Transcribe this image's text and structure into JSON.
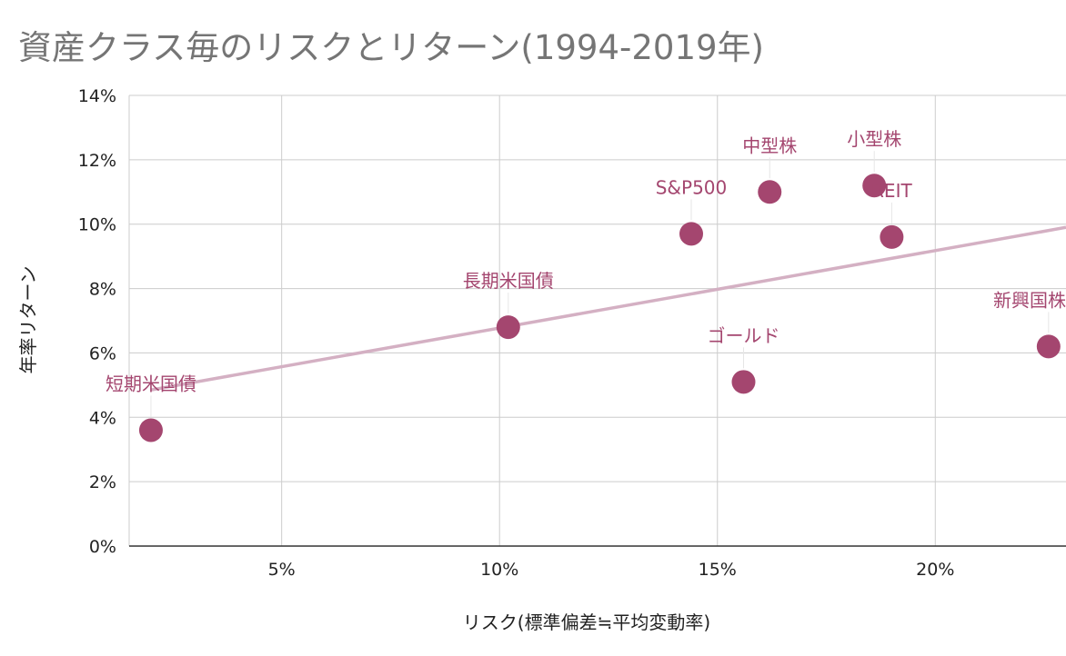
{
  "chart_data": {
    "type": "scatter",
    "title": "資産クラス毎のリスクとリターン(1994-2019年)",
    "xlabel": "リスク(標準偏差≒平均変動率)",
    "ylabel": "年率リターン",
    "xlim": [
      1.5,
      23.0
    ],
    "ylim": [
      0,
      14
    ],
    "x_ticks": [
      5,
      10,
      15,
      20
    ],
    "x_tick_labels": [
      "5%",
      "10%",
      "15%",
      "20%"
    ],
    "y_ticks": [
      0,
      2,
      4,
      6,
      8,
      10,
      12,
      14
    ],
    "y_tick_labels": [
      "0%",
      "2%",
      "4%",
      "6%",
      "8%",
      "10%",
      "12%",
      "14%"
    ],
    "grid": true,
    "legend": "none",
    "point_color": "#a4466f",
    "trendline_color": "#d4b0c3",
    "points": [
      {
        "label": "短期米国債",
        "x": 2.0,
        "y": 3.6
      },
      {
        "label": "長期米国債",
        "x": 10.2,
        "y": 6.8
      },
      {
        "label": "S&P500",
        "x": 14.4,
        "y": 9.7
      },
      {
        "label": "中型株",
        "x": 16.2,
        "y": 11.0
      },
      {
        "label": "小型株",
        "x": 18.6,
        "y": 11.2
      },
      {
        "label": "REIT",
        "x": 19.0,
        "y": 9.6
      },
      {
        "label": "ゴールド",
        "x": 15.6,
        "y": 5.1
      },
      {
        "label": "新興国株",
        "x": 22.6,
        "y": 6.2
      }
    ],
    "trendline": {
      "x": [
        2.0,
        23.0
      ],
      "y": [
        4.85,
        9.9
      ]
    }
  }
}
